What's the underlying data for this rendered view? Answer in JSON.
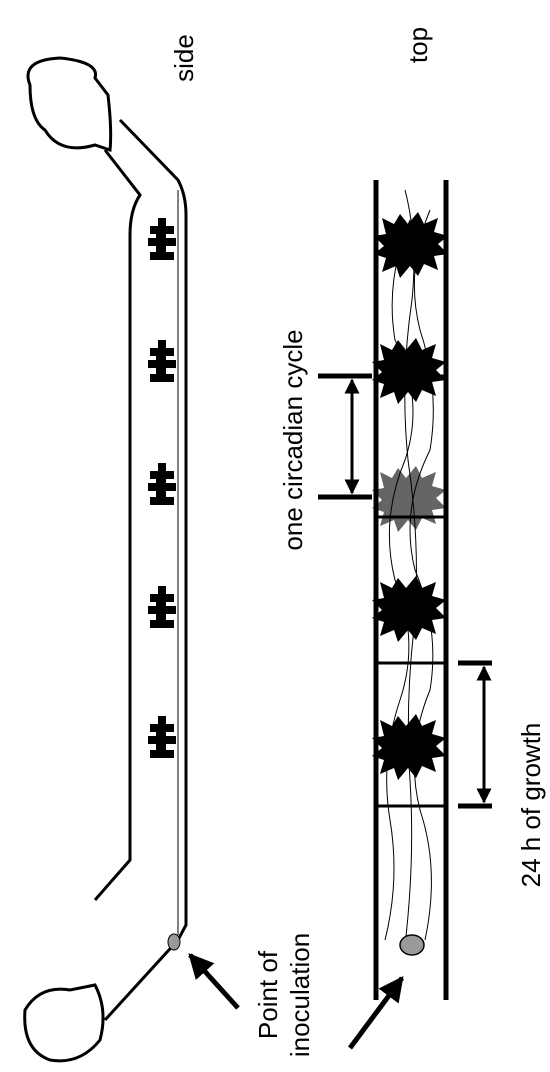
{
  "labels": {
    "side": "side",
    "top": "top",
    "cycle": "one circadian cycle",
    "growth": "24 h of growth",
    "inoculation": [
      "Point of",
      "inoculation"
    ]
  }
}
